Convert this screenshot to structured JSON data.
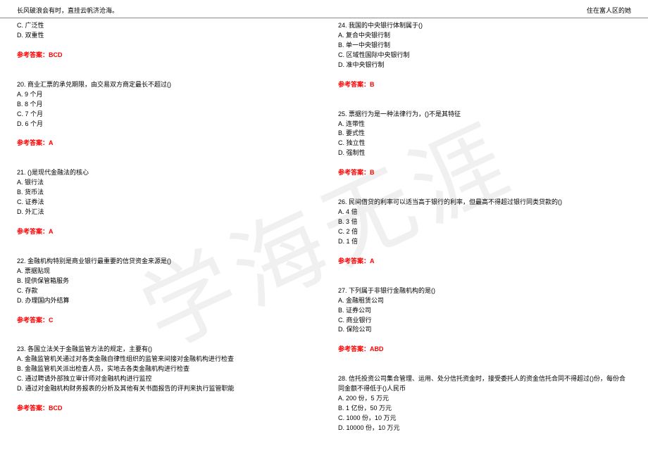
{
  "header": {
    "left": "长风破浪会有时，直挂云帆济沧海。",
    "right": "住在富人区的她"
  },
  "watermark": "学海无涯",
  "answer_label": "参考答案：",
  "left_column": [
    {
      "type": "line",
      "text": "C. 广泛性"
    },
    {
      "type": "line",
      "text": "D. 双重性"
    },
    {
      "type": "blank"
    },
    {
      "type": "answer",
      "text": "BCD"
    },
    {
      "type": "gap"
    },
    {
      "type": "line",
      "text": "20. 商业汇票的承兑期限，由交易双方商定最长不超过()"
    },
    {
      "type": "line",
      "text": "A. 9 个月"
    },
    {
      "type": "line",
      "text": "B. 8 个月"
    },
    {
      "type": "line",
      "text": "C. 7 个月"
    },
    {
      "type": "line",
      "text": "D. 6 个月"
    },
    {
      "type": "blank"
    },
    {
      "type": "answer",
      "text": "A"
    },
    {
      "type": "gap"
    },
    {
      "type": "line",
      "text": "21. ()是现代金融法的核心"
    },
    {
      "type": "line",
      "text": "A. 银行法"
    },
    {
      "type": "line",
      "text": "B. 货币法"
    },
    {
      "type": "line",
      "text": "C. 证券法"
    },
    {
      "type": "line",
      "text": "D. 外汇法"
    },
    {
      "type": "blank"
    },
    {
      "type": "answer",
      "text": "A"
    },
    {
      "type": "gap"
    },
    {
      "type": "line",
      "text": "22. 金融机构特别是商业银行最重要的信贷资金来源是()"
    },
    {
      "type": "line",
      "text": "A. 票据贴现"
    },
    {
      "type": "line",
      "text": "B. 提供保管箱服务"
    },
    {
      "type": "line",
      "text": "C. 存款"
    },
    {
      "type": "line",
      "text": "D. 办理国内外结算"
    },
    {
      "type": "blank"
    },
    {
      "type": "answer",
      "text": "C"
    },
    {
      "type": "gap"
    },
    {
      "type": "line",
      "text": "23. 各国立法关于金融监管方法的规定，主要有()"
    },
    {
      "type": "line",
      "text": "A. 金融监管机关通过对各类金融自律性组织的监管来间接对金融机构进行检查"
    },
    {
      "type": "line",
      "text": "B. 金融监管机关派出检查人员，实地去各类金融机构进行检查"
    },
    {
      "type": "line",
      "text": "C. 通过聘请外部独立审计师对金融机构进行监控"
    },
    {
      "type": "line",
      "text": "D. 通过对金融机构财务报表的分析及其他有关书面报告的评判来执行监管职能"
    },
    {
      "type": "blank"
    },
    {
      "type": "answer",
      "text": "BCD"
    }
  ],
  "right_column": [
    {
      "type": "line",
      "text": "24. 我国的中央银行体制属于()"
    },
    {
      "type": "line",
      "text": "A. 复合中央银行制"
    },
    {
      "type": "line",
      "text": "B. 单一中央银行制"
    },
    {
      "type": "line",
      "text": "C. 区域性国际中央银行制"
    },
    {
      "type": "line",
      "text": "D. 准中央银行制"
    },
    {
      "type": "blank"
    },
    {
      "type": "answer",
      "text": "B"
    },
    {
      "type": "gap"
    },
    {
      "type": "line",
      "text": "25. 票据行为是一种法律行为，()不是其特征"
    },
    {
      "type": "line",
      "text": "A. 连带性"
    },
    {
      "type": "line",
      "text": "B. 要式性"
    },
    {
      "type": "line",
      "text": "C. 独立性"
    },
    {
      "type": "line",
      "text": "D. 强制性"
    },
    {
      "type": "blank"
    },
    {
      "type": "answer",
      "text": "B"
    },
    {
      "type": "gap"
    },
    {
      "type": "line",
      "text": "26. 民间借贷的利率可以适当高于银行的利率，但最高不得超过银行同类贷款的()"
    },
    {
      "type": "line",
      "text": "A. 4 倍"
    },
    {
      "type": "line",
      "text": "B. 3 倍"
    },
    {
      "type": "line",
      "text": "C. 2 倍"
    },
    {
      "type": "line",
      "text": "D. 1 倍"
    },
    {
      "type": "blank"
    },
    {
      "type": "answer",
      "text": "A"
    },
    {
      "type": "gap"
    },
    {
      "type": "line",
      "text": "27. 下列属于非银行金融机构的是()"
    },
    {
      "type": "line",
      "text": "A. 金融租赁公司"
    },
    {
      "type": "line",
      "text": "B. 证券公司"
    },
    {
      "type": "line",
      "text": "C. 商业银行"
    },
    {
      "type": "line",
      "text": "D. 保险公司"
    },
    {
      "type": "blank"
    },
    {
      "type": "answer",
      "text": "ABD"
    },
    {
      "type": "gap"
    },
    {
      "type": "line",
      "text": "28. 信托投资公司集合管理、运用、处分信托资金时，接受委托人的资金信托合同不得超过()份，每份合同金额不得低于()人民币"
    },
    {
      "type": "line",
      "text": "A. 200 份，5 万元"
    },
    {
      "type": "line",
      "text": "B. 1 亿份，50 万元"
    },
    {
      "type": "line",
      "text": "C. 1000 份，10 万元"
    },
    {
      "type": "line",
      "text": "D. 10000 份，10 万元"
    }
  ]
}
